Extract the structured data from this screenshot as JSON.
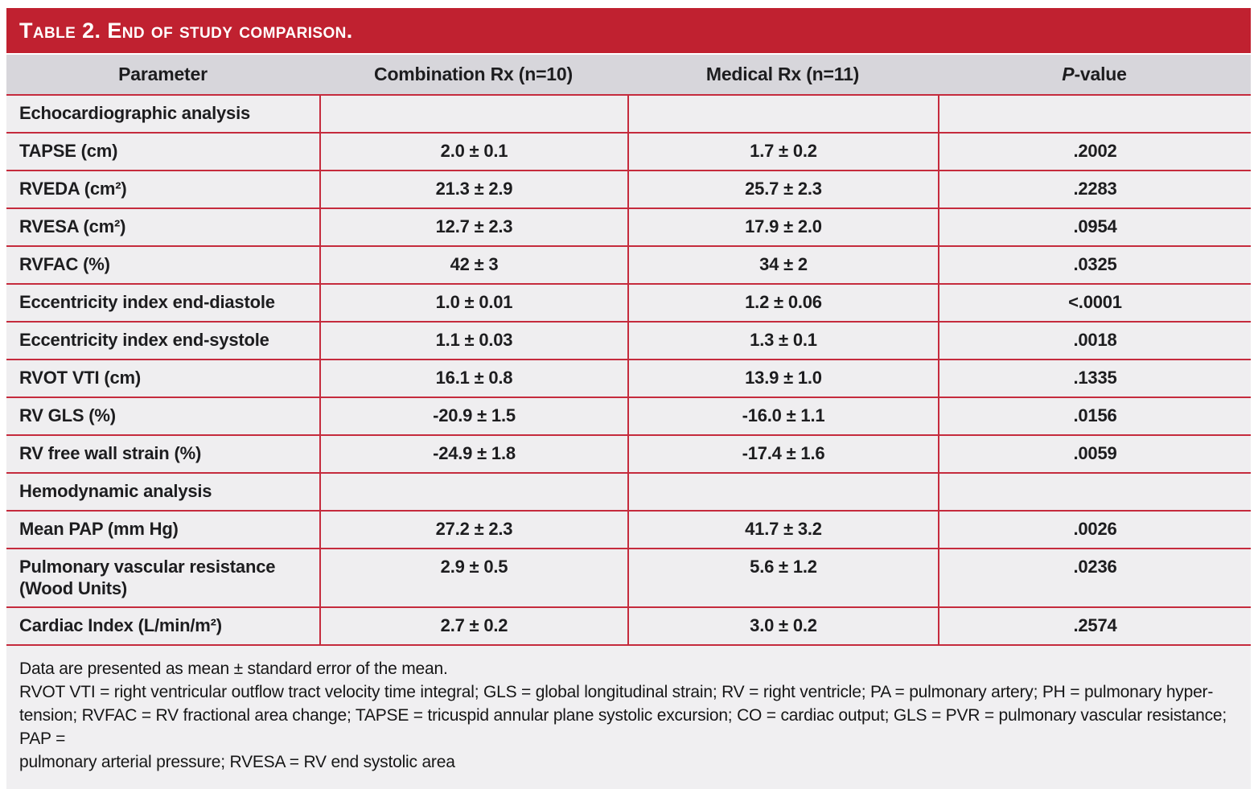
{
  "title": "Table 2. End of study comparison.",
  "colors": {
    "accent_red": "#c02130",
    "line_red": "#c52b3d",
    "header_bg": "#d7d6db",
    "row_bg": "#efeef0",
    "text": "#1d1d1f"
  },
  "table": {
    "headers": {
      "parameter": "Parameter",
      "combination": "Combination Rx (n=10)",
      "medical": "Medical Rx (n=11)",
      "p_italic": "P",
      "p_rest": "-value"
    },
    "rows": [
      {
        "label": "Echocardiographic analysis",
        "combination": "",
        "medical": "",
        "p": "",
        "section": true
      },
      {
        "label": "TAPSE (cm)",
        "combination": "2.0 ± 0.1",
        "medical": "1.7 ± 0.2",
        "p": ".2002"
      },
      {
        "label": "RVEDA (cm²)",
        "combination": "21.3 ± 2.9",
        "medical": "25.7 ± 2.3",
        "p": ".2283"
      },
      {
        "label": "RVESA (cm²)",
        "combination": "12.7 ± 2.3",
        "medical": "17.9 ± 2.0",
        "p": ".0954"
      },
      {
        "label": "RVFAC (%)",
        "combination": "42 ± 3",
        "medical": "34 ± 2",
        "p": ".0325"
      },
      {
        "label": "Eccentricity index end-diastole",
        "combination": "1.0 ± 0.01",
        "medical": "1.2 ± 0.06",
        "p": "<.0001"
      },
      {
        "label": "Eccentricity index end-systole",
        "combination": "1.1 ± 0.03",
        "medical": "1.3 ± 0.1",
        "p": ".0018"
      },
      {
        "label": "RVOT VTI (cm)",
        "combination": "16.1 ± 0.8",
        "medical": "13.9 ± 1.0",
        "p": ".1335"
      },
      {
        "label": "RV GLS (%)",
        "combination": "-20.9 ± 1.5",
        "medical": "-16.0 ± 1.1",
        "p": ".0156"
      },
      {
        "label": "RV free wall strain (%)",
        "combination": "-24.9 ± 1.8",
        "medical": "-17.4 ± 1.6",
        "p": ".0059"
      },
      {
        "label": "Hemodynamic analysis",
        "combination": "",
        "medical": "",
        "p": "",
        "section": true
      },
      {
        "label": "Mean PAP (mm Hg)",
        "combination": "27.2 ± 2.3",
        "medical": "41.7 ± 3.2",
        "p": ".0026"
      },
      {
        "label": "Pulmonary vascular resistance (Wood Units)",
        "combination": "2.9 ± 0.5",
        "medical": "5.6 ± 1.2",
        "p": ".0236",
        "tall": true
      },
      {
        "label": "Cardiac Index (L/min/m²)",
        "combination": "2.7 ± 0.2",
        "medical": "3.0 ± 0.2",
        "p": ".2574"
      }
    ]
  },
  "footnote": {
    "lines": [
      "Data are presented as mean ± standard error of the mean.",
      "RVOT VTI = right ventricular outflow tract velocity time integral; GLS = global longitudinal strain; RV = right ventricle; PA = pulmonary artery; PH = pulmonary hyper-",
      "tension; RVFAC = RV fractional area change; TAPSE = tricuspid annular plane systolic excursion; CO = cardiac output; GLS = PVR = pulmonary vascular resistance; PAP =",
      "pulmonary arterial pressure; RVESA = RV end systolic area"
    ]
  }
}
